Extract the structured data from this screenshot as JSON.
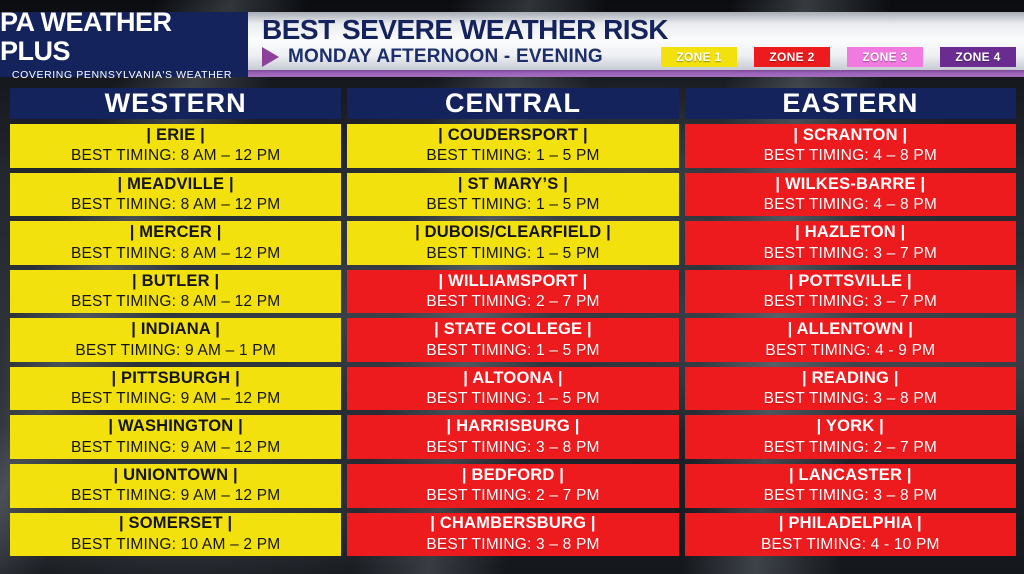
{
  "brand": {
    "title": "PA WEATHER PLUS",
    "tagline": "COVERING PENNSYLVANIA'S WEATHER"
  },
  "header": {
    "title": "BEST SEVERE WEATHER RISK",
    "subtitle": "MONDAY AFTERNOON - EVENING",
    "arrow_icon": "play-arrow"
  },
  "legend": {
    "zones": [
      {
        "label": "ZONE 1",
        "color": "#f2e10d"
      },
      {
        "label": "ZONE 2",
        "color": "#ee1b1e"
      },
      {
        "label": "ZONE 3",
        "color": "#f17ae1"
      },
      {
        "label": "ZONE 4",
        "color": "#6a2c90"
      }
    ]
  },
  "colors": {
    "navy": "#15235c",
    "zone1_yellow": "#f2e10d",
    "zone2_red": "#ee1b1e",
    "purple_strip": "#9c64b8",
    "arrow_purple": "#8d3f9c"
  },
  "table": {
    "columns": [
      {
        "header": "WESTERN",
        "rows": [
          {
            "city": "| ERIE |",
            "timing": "BEST TIMING: 8 AM – 12 PM",
            "zone": "yellow"
          },
          {
            "city": "| MEADVILLE |",
            "timing": "BEST TIMING: 8 AM – 12 PM",
            "zone": "yellow"
          },
          {
            "city": "| MERCER |",
            "timing": "BEST TIMING: 8 AM – 12 PM",
            "zone": "yellow"
          },
          {
            "city": "| BUTLER |",
            "timing": "BEST TIMING: 8 AM – 12 PM",
            "zone": "yellow"
          },
          {
            "city": "| INDIANA |",
            "timing": "BEST TIMING: 9 AM – 1 PM",
            "zone": "yellow"
          },
          {
            "city": "| PITTSBURGH |",
            "timing": "BEST TIMING: 9 AM – 12 PM",
            "zone": "yellow"
          },
          {
            "city": "| WASHINGTON |",
            "timing": "BEST TIMING: 9 AM – 12 PM",
            "zone": "yellow"
          },
          {
            "city": "| UNIONTOWN |",
            "timing": "BEST TIMING: 9 AM – 12 PM",
            "zone": "yellow"
          },
          {
            "city": "| SOMERSET |",
            "timing": "BEST TIMING: 10 AM – 2 PM",
            "zone": "yellow"
          }
        ]
      },
      {
        "header": "CENTRAL",
        "rows": [
          {
            "city": "| COUDERSPORT |",
            "timing": "BEST TIMING: 1 – 5 PM",
            "zone": "yellow"
          },
          {
            "city": "| ST MARY’S |",
            "timing": "BEST TIMING: 1 – 5 PM",
            "zone": "yellow"
          },
          {
            "city": "| DUBOIS/CLEARFIELD |",
            "timing": "BEST TIMING: 1 – 5 PM",
            "zone": "yellow"
          },
          {
            "city": "| WILLIAMSPORT |",
            "timing": "BEST TIMING: 2 – 7 PM",
            "zone": "red"
          },
          {
            "city": "| STATE COLLEGE |",
            "timing": "BEST TIMING: 1 – 5 PM",
            "zone": "red"
          },
          {
            "city": "| ALTOONA |",
            "timing": "BEST TIMING: 1 – 5 PM",
            "zone": "red"
          },
          {
            "city": "| HARRISBURG |",
            "timing": "BEST TIMING: 3 – 8 PM",
            "zone": "red"
          },
          {
            "city": "| BEDFORD |",
            "timing": "BEST TIMING: 2 – 7 PM",
            "zone": "red"
          },
          {
            "city": "| CHAMBERSBURG |",
            "timing": "BEST TIMING: 3 – 8 PM",
            "zone": "red"
          }
        ]
      },
      {
        "header": "EASTERN",
        "rows": [
          {
            "city": "| SCRANTON |",
            "timing": "BEST TIMING: 4 – 8 PM",
            "zone": "red"
          },
          {
            "city": "| WILKES-BARRE |",
            "timing": "BEST TIMING: 4 – 8 PM",
            "zone": "red"
          },
          {
            "city": "| HAZLETON |",
            "timing": "BEST TIMING: 3 – 7 PM",
            "zone": "red"
          },
          {
            "city": "| POTTSVILLE |",
            "timing": "BEST TIMING: 3 – 7 PM",
            "zone": "red"
          },
          {
            "city": "| ALLENTOWN |",
            "timing": "BEST TIMING: 4 - 9 PM",
            "zone": "red"
          },
          {
            "city": "| READING |",
            "timing": "BEST TIMING: 3 – 8 PM",
            "zone": "red"
          },
          {
            "city": "| YORK |",
            "timing": "BEST TIMING: 2 – 7 PM",
            "zone": "red"
          },
          {
            "city": "| LANCASTER |",
            "timing": "BEST TIMING: 3 – 8 PM",
            "zone": "red"
          },
          {
            "city": "| PHILADELPHIA |",
            "timing": "BEST TIMING: 4 - 10 PM",
            "zone": "red"
          }
        ]
      }
    ]
  }
}
